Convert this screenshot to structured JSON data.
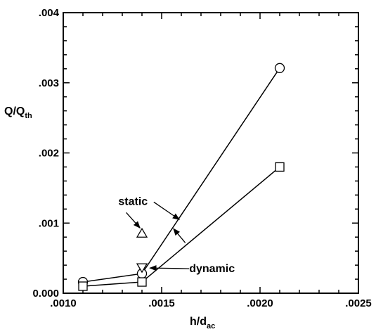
{
  "chart_data": {
    "type": "line",
    "title": "",
    "xlabel": {
      "main": "h/d",
      "sub": "ac"
    },
    "ylabel": {
      "main": "Q/Q",
      "sub": "th"
    },
    "xlim": [
      0.001,
      0.0025
    ],
    "ylim": [
      0.0,
      0.004
    ],
    "x_ticks": [
      0.001,
      0.0015,
      0.002,
      0.0025
    ],
    "x_tick_labels": [
      ".0010",
      ".0015",
      ".0020",
      ".0025"
    ],
    "y_ticks": [
      0.0,
      0.001,
      0.002,
      0.003,
      0.004
    ],
    "y_tick_labels": [
      "0.000",
      ".001",
      ".002",
      ".003",
      ".004"
    ],
    "grid": false,
    "series": [
      {
        "marker": "circle",
        "x": [
          0.0011,
          0.0014,
          0.0021
        ],
        "y": [
          0.00016,
          0.00028,
          0.00321
        ]
      },
      {
        "marker": "square",
        "x": [
          0.0011,
          0.0014,
          0.0021
        ],
        "y": [
          0.0001,
          0.00016,
          0.0018
        ]
      },
      {
        "marker": "triangle-up",
        "x": [
          0.0014
        ],
        "y": [
          0.00085
        ]
      },
      {
        "marker": "triangle-down",
        "x": [
          0.0014
        ],
        "y": [
          0.00037
        ]
      }
    ],
    "annotations": [
      {
        "text": "static",
        "x": 0.00128,
        "y": 0.00126
      },
      {
        "text": "dynamic",
        "x": 0.00164,
        "y": 0.0003
      }
    ],
    "arrows": [
      {
        "from": [
          0.00132,
          0.00115
        ],
        "to": [
          0.00139,
          0.00093
        ]
      },
      {
        "from": [
          0.00146,
          0.0013
        ],
        "to": [
          0.00159,
          0.00105
        ]
      },
      {
        "from": [
          0.00164,
          0.00035
        ],
        "to": [
          0.00144,
          0.00036
        ]
      },
      {
        "from": [
          0.00162,
          0.00072
        ],
        "to": [
          0.00156,
          0.00092
        ]
      }
    ]
  }
}
